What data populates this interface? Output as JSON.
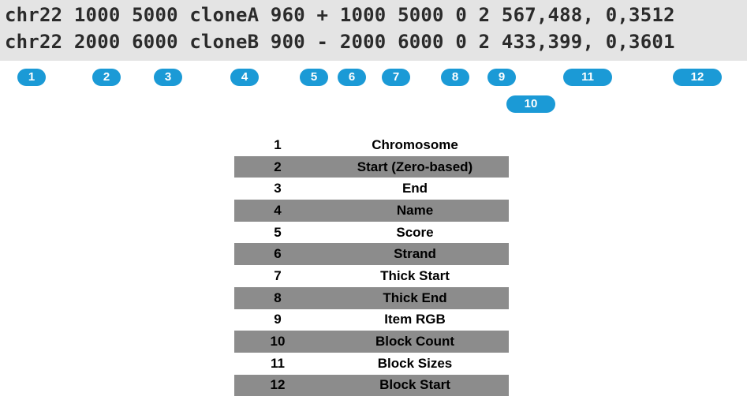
{
  "code_lines": [
    "chr22 1000 5000 cloneA 960 + 1000 5000 0 2 567,488, 0,3512",
    "chr22 2000 6000 cloneB 900 - 2000 6000 0 2 433,399, 0,3601"
  ],
  "badges": [
    "1",
    "2",
    "3",
    "4",
    "5",
    "6",
    "7",
    "8",
    "9",
    "10",
    "11",
    "12"
  ],
  "legend": [
    {
      "num": "1",
      "name": "Chromosome"
    },
    {
      "num": "2",
      "name": "Start (Zero-based)"
    },
    {
      "num": "3",
      "name": "End"
    },
    {
      "num": "4",
      "name": "Name"
    },
    {
      "num": "5",
      "name": "Score"
    },
    {
      "num": "6",
      "name": "Strand"
    },
    {
      "num": "7",
      "name": "Thick Start"
    },
    {
      "num": "8",
      "name": "Thick End"
    },
    {
      "num": "9",
      "name": "Item RGB"
    },
    {
      "num": "10",
      "name": "Block Count"
    },
    {
      "num": "11",
      "name": "Block Sizes"
    },
    {
      "num": "12",
      "name": "Block Start"
    }
  ],
  "colors": {
    "badge": "#1b9ad6",
    "code_background": "#e4e4e4",
    "shaded_row": "#8c8c8c"
  }
}
